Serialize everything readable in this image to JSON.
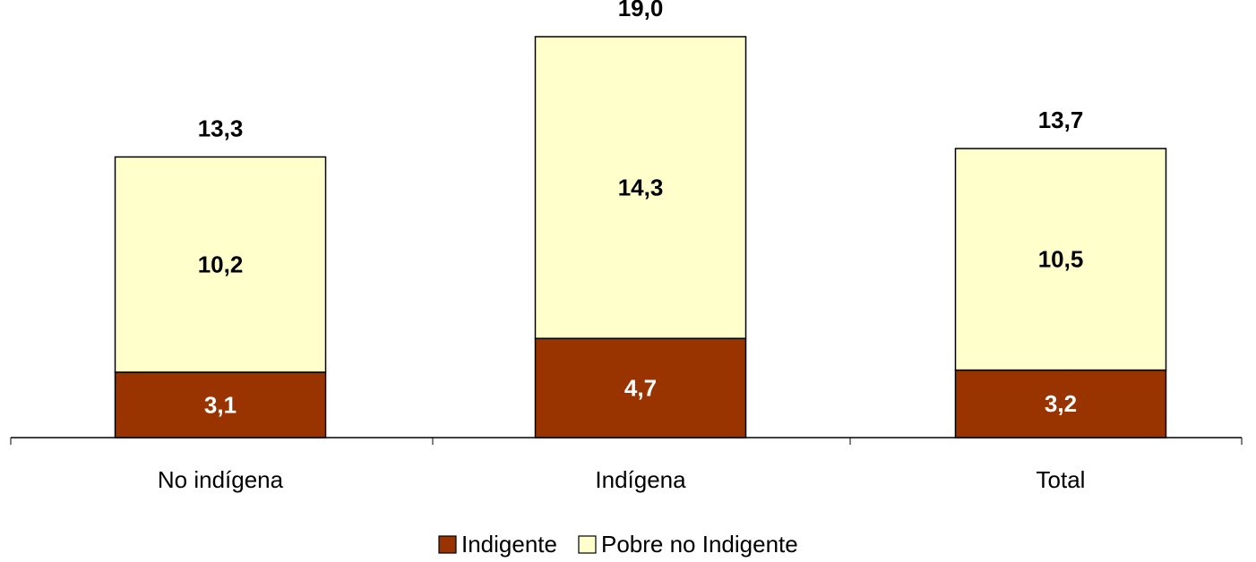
{
  "chart_data": {
    "type": "stacked_bar",
    "categories": [
      "No indígena",
      "Indígena",
      "Total"
    ],
    "series": [
      {
        "name": "Indigente",
        "color": "#993300",
        "values": [
          3.1,
          4.7,
          3.2
        ],
        "value_labels": [
          "3,1",
          "4,7",
          "3,2"
        ]
      },
      {
        "name": "Pobre no Indigente",
        "color": "#ffffcc",
        "values": [
          10.2,
          14.3,
          10.5
        ],
        "value_labels": [
          "10,2",
          "14,3",
          "10,5"
        ]
      }
    ],
    "totals": [
      13.3,
      19.0,
      13.7
    ],
    "totals_labels": [
      "13,3",
      "19,0",
      "13,7"
    ]
  }
}
